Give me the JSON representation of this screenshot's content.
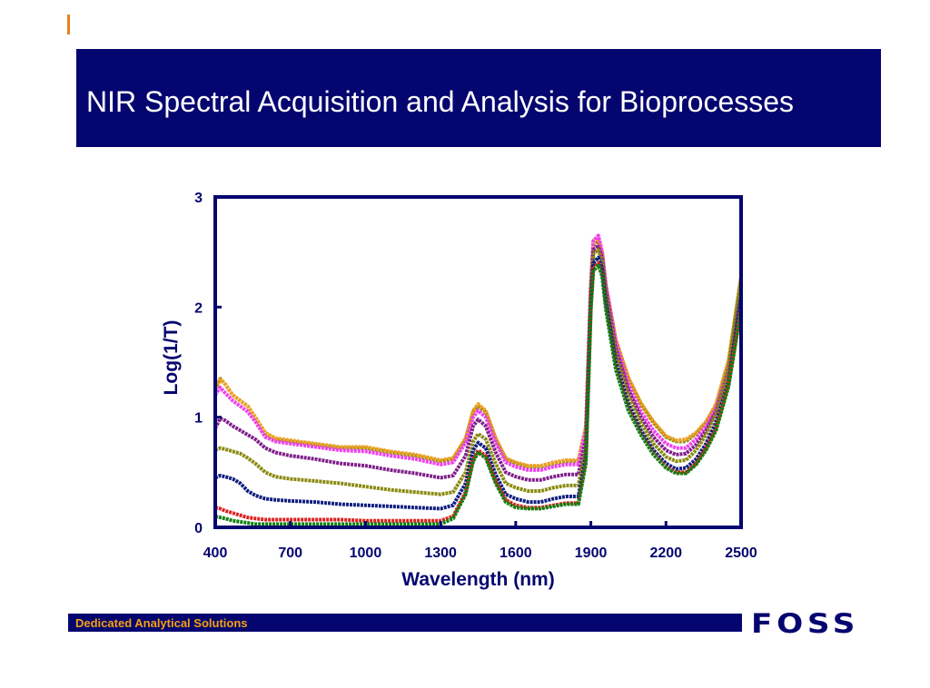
{
  "slide": {
    "title": "NIR Spectral Acquisition and Analysis for Bioprocesses",
    "footer": "Dedicated Analytical Solutions",
    "brand": "FOSS"
  },
  "colors": {
    "banner": "#050570",
    "accent": "#e8801a",
    "footer_text": "#f4a012",
    "axis": "#050570"
  },
  "chart_data": {
    "type": "line",
    "xlabel": "Wavelength (nm)",
    "ylabel": "Log(1/T)",
    "xlim": [
      400,
      2500
    ],
    "ylim": [
      0,
      3
    ],
    "xticks": [
      400,
      700,
      1000,
      1300,
      1600,
      1900,
      2200,
      2500
    ],
    "yticks": [
      0,
      1,
      2,
      3
    ],
    "grid": false,
    "legend": "none",
    "x": [
      400,
      420,
      440,
      470,
      500,
      530,
      560,
      600,
      640,
      700,
      800,
      900,
      1000,
      1100,
      1200,
      1300,
      1350,
      1400,
      1430,
      1450,
      1480,
      1520,
      1560,
      1600,
      1650,
      1700,
      1750,
      1800,
      1850,
      1880,
      1900,
      1910,
      1930,
      1945,
      1960,
      2000,
      2050,
      2100,
      2150,
      2200,
      2240,
      2280,
      2320,
      2360,
      2400,
      2450,
      2500
    ],
    "series": [
      {
        "color": "#8a8a10",
        "values": [
          1.25,
          1.35,
          1.3,
          1.2,
          1.15,
          1.1,
          1.0,
          0.85,
          0.8,
          0.78,
          0.75,
          0.72,
          0.72,
          0.68,
          0.65,
          0.6,
          0.62,
          0.8,
          1.05,
          1.1,
          1.05,
          0.8,
          0.62,
          0.58,
          0.55,
          0.55,
          0.58,
          0.6,
          0.6,
          0.9,
          2.2,
          2.55,
          2.6,
          2.5,
          2.2,
          1.7,
          1.35,
          1.12,
          0.95,
          0.82,
          0.78,
          0.78,
          0.85,
          0.95,
          1.1,
          1.5,
          2.28
        ]
      },
      {
        "color": "#f0a020",
        "values": [
          1.27,
          1.34,
          1.3,
          1.2,
          1.15,
          1.1,
          1.0,
          0.86,
          0.81,
          0.79,
          0.76,
          0.73,
          0.73,
          0.69,
          0.66,
          0.61,
          0.63,
          0.81,
          1.06,
          1.12,
          1.06,
          0.81,
          0.63,
          0.59,
          0.56,
          0.56,
          0.59,
          0.61,
          0.61,
          0.92,
          2.25,
          2.6,
          2.62,
          2.5,
          2.2,
          1.7,
          1.36,
          1.13,
          0.96,
          0.83,
          0.79,
          0.8,
          0.86,
          0.96,
          1.12,
          1.52,
          2.26
        ]
      },
      {
        "color": "#f040f0",
        "values": [
          1.2,
          1.27,
          1.22,
          1.15,
          1.1,
          1.05,
          0.96,
          0.82,
          0.78,
          0.76,
          0.73,
          0.7,
          0.69,
          0.65,
          0.62,
          0.57,
          0.59,
          0.77,
          1.0,
          1.06,
          1.0,
          0.77,
          0.59,
          0.55,
          0.52,
          0.52,
          0.55,
          0.57,
          0.57,
          0.88,
          2.2,
          2.6,
          2.65,
          2.5,
          2.2,
          1.68,
          1.3,
          1.05,
          0.88,
          0.76,
          0.72,
          0.72,
          0.8,
          0.92,
          1.08,
          1.45,
          2.05
        ]
      },
      {
        "color": "#80208a",
        "values": [
          0.9,
          0.99,
          0.97,
          0.92,
          0.88,
          0.84,
          0.8,
          0.72,
          0.68,
          0.65,
          0.62,
          0.58,
          0.56,
          0.52,
          0.49,
          0.45,
          0.47,
          0.65,
          0.92,
          0.98,
          0.92,
          0.68,
          0.5,
          0.46,
          0.43,
          0.43,
          0.46,
          0.48,
          0.48,
          0.8,
          2.15,
          2.52,
          2.55,
          2.45,
          2.15,
          1.62,
          1.25,
          1.0,
          0.82,
          0.7,
          0.66,
          0.67,
          0.75,
          0.88,
          1.05,
          1.42,
          2.18
        ]
      },
      {
        "color": "#8a8a10",
        "values": [
          0.7,
          0.72,
          0.71,
          0.69,
          0.67,
          0.63,
          0.58,
          0.5,
          0.46,
          0.44,
          0.42,
          0.4,
          0.37,
          0.34,
          0.32,
          0.3,
          0.32,
          0.5,
          0.78,
          0.85,
          0.8,
          0.58,
          0.4,
          0.36,
          0.33,
          0.33,
          0.36,
          0.38,
          0.38,
          0.72,
          2.1,
          2.48,
          2.52,
          2.42,
          2.12,
          1.58,
          1.2,
          0.95,
          0.76,
          0.64,
          0.6,
          0.61,
          0.7,
          0.84,
          1.03,
          1.45,
          2.25
        ]
      },
      {
        "color": "#102080",
        "values": [
          0.45,
          0.47,
          0.46,
          0.44,
          0.4,
          0.33,
          0.29,
          0.26,
          0.25,
          0.24,
          0.23,
          0.21,
          0.2,
          0.19,
          0.18,
          0.17,
          0.2,
          0.4,
          0.7,
          0.77,
          0.72,
          0.48,
          0.3,
          0.26,
          0.23,
          0.23,
          0.26,
          0.28,
          0.28,
          0.65,
          2.05,
          2.4,
          2.45,
          2.35,
          2.05,
          1.5,
          1.12,
          0.88,
          0.7,
          0.58,
          0.53,
          0.54,
          0.62,
          0.76,
          0.95,
          1.32,
          2.1
        ]
      },
      {
        "color": "#e02020",
        "values": [
          0.18,
          0.17,
          0.15,
          0.13,
          0.11,
          0.09,
          0.08,
          0.07,
          0.07,
          0.07,
          0.07,
          0.07,
          0.06,
          0.06,
          0.06,
          0.06,
          0.1,
          0.32,
          0.62,
          0.7,
          0.65,
          0.42,
          0.25,
          0.2,
          0.18,
          0.18,
          0.2,
          0.22,
          0.22,
          0.6,
          2.0,
          2.35,
          2.4,
          2.3,
          2.0,
          1.45,
          1.08,
          0.85,
          0.67,
          0.55,
          0.5,
          0.5,
          0.58,
          0.72,
          0.9,
          1.3,
          2.0
        ]
      },
      {
        "color": "#108010",
        "values": [
          0.1,
          0.09,
          0.08,
          0.06,
          0.05,
          0.04,
          0.03,
          0.03,
          0.03,
          0.03,
          0.03,
          0.03,
          0.03,
          0.03,
          0.03,
          0.03,
          0.08,
          0.3,
          0.6,
          0.68,
          0.63,
          0.4,
          0.23,
          0.18,
          0.17,
          0.17,
          0.19,
          0.21,
          0.21,
          0.58,
          1.98,
          2.33,
          2.38,
          2.28,
          1.98,
          1.43,
          1.06,
          0.84,
          0.66,
          0.54,
          0.49,
          0.49,
          0.57,
          0.7,
          0.88,
          1.28,
          1.98
        ]
      }
    ]
  }
}
